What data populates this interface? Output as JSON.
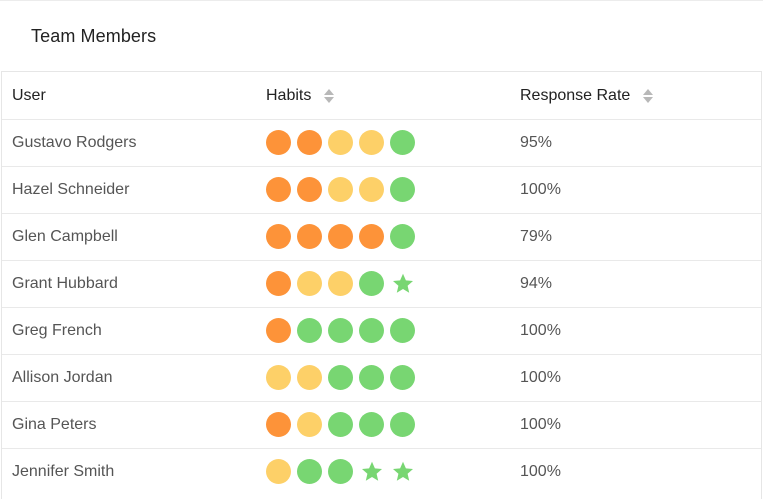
{
  "card": {
    "title": "Team Members"
  },
  "table": {
    "columns": [
      {
        "label": "User",
        "sortable": false
      },
      {
        "label": "Habits",
        "sortable": true
      },
      {
        "label": "Response Rate",
        "sortable": true
      }
    ],
    "rows": [
      {
        "user": "Gustavo Rodgers",
        "habits": [
          "orange",
          "orange",
          "yellow",
          "yellow",
          "green"
        ],
        "rate": "95%"
      },
      {
        "user": "Hazel Schneider",
        "habits": [
          "orange",
          "orange",
          "yellow",
          "yellow",
          "green"
        ],
        "rate": "100%"
      },
      {
        "user": "Glen Campbell",
        "habits": [
          "orange",
          "orange",
          "orange",
          "orange",
          "green"
        ],
        "rate": "79%"
      },
      {
        "user": "Grant Hubbard",
        "habits": [
          "orange",
          "yellow",
          "yellow",
          "green",
          "star"
        ],
        "rate": "94%"
      },
      {
        "user": "Greg French",
        "habits": [
          "orange",
          "green",
          "green",
          "green",
          "green"
        ],
        "rate": "100%"
      },
      {
        "user": "Allison Jordan",
        "habits": [
          "yellow",
          "yellow",
          "green",
          "green",
          "green"
        ],
        "rate": "100%"
      },
      {
        "user": "Gina Peters",
        "habits": [
          "orange",
          "yellow",
          "green",
          "green",
          "green"
        ],
        "rate": "100%"
      },
      {
        "user": "Jennifer Smith",
        "habits": [
          "yellow",
          "green",
          "green",
          "star",
          "star"
        ],
        "rate": "100%"
      }
    ]
  },
  "colors": {
    "orange": "#fd9339",
    "yellow": "#fdd068",
    "green": "#78d672",
    "star": "#78d672"
  }
}
